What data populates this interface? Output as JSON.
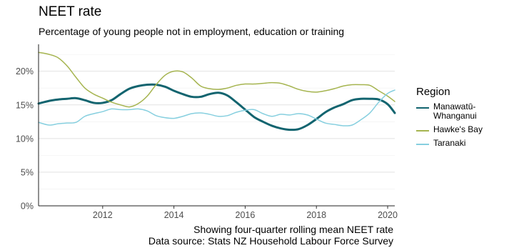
{
  "title": "NEET rate",
  "subtitle": "Percentage of young people not in employment, education or training",
  "caption_line1": "Showing four-quarter rolling mean NEET rate",
  "caption_line2": "Data source: Stats NZ Household Labour Force Survey",
  "legend": {
    "title": "Region",
    "items": [
      {
        "label": "Manawatū-Whanganui",
        "color": "#12646f"
      },
      {
        "label": "Hawke's Bay",
        "color": "#a5b44f"
      },
      {
        "label": "Taranaki",
        "color": "#86cfdf"
      }
    ]
  },
  "chart_data": {
    "type": "line",
    "xlim": [
      2010.2,
      2020.2
    ],
    "ylim": [
      0,
      24
    ],
    "x_ticks": [
      2012,
      2014,
      2016,
      2018,
      2020
    ],
    "x_tick_labels": [
      "2012",
      "2014",
      "2016",
      "2018",
      "2020"
    ],
    "y_ticks": [
      0,
      5,
      10,
      15,
      20
    ],
    "y_tick_labels": [
      "0%",
      "5%",
      "10%",
      "15%",
      "20%"
    ],
    "grid": true,
    "legend_position": "right",
    "series": [
      {
        "name": "Manawatū-Whanganui",
        "color": "#12646f",
        "width": 3,
        "x": [
          2010.2,
          2010.5,
          2010.75,
          2011.0,
          2011.25,
          2011.5,
          2011.75,
          2012.0,
          2012.25,
          2012.5,
          2012.75,
          2013.0,
          2013.25,
          2013.5,
          2013.75,
          2014.0,
          2014.25,
          2014.5,
          2014.75,
          2015.0,
          2015.25,
          2015.5,
          2015.75,
          2016.0,
          2016.25,
          2016.5,
          2016.75,
          2017.0,
          2017.25,
          2017.5,
          2017.75,
          2018.0,
          2018.25,
          2018.5,
          2018.75,
          2019.0,
          2019.25,
          2019.5,
          2019.75,
          2020.0,
          2020.2
        ],
        "y": [
          15.2,
          15.6,
          15.8,
          15.9,
          16.0,
          15.7,
          15.3,
          15.3,
          15.7,
          16.6,
          17.4,
          17.8,
          18.0,
          18.0,
          17.7,
          17.1,
          16.6,
          16.2,
          16.2,
          16.6,
          16.8,
          16.4,
          15.4,
          14.3,
          13.2,
          12.5,
          11.9,
          11.5,
          11.3,
          11.4,
          12.0,
          12.9,
          13.9,
          14.6,
          15.1,
          15.7,
          15.9,
          15.9,
          15.8,
          15.1,
          13.8
        ]
      },
      {
        "name": "Hawke's Bay",
        "color": "#a5b44f",
        "width": 1.5,
        "x": [
          2010.2,
          2010.5,
          2010.75,
          2011.0,
          2011.25,
          2011.5,
          2011.75,
          2012.0,
          2012.25,
          2012.5,
          2012.75,
          2013.0,
          2013.25,
          2013.5,
          2013.75,
          2014.0,
          2014.25,
          2014.5,
          2014.75,
          2015.0,
          2015.25,
          2015.5,
          2015.75,
          2016.0,
          2016.25,
          2016.5,
          2016.75,
          2017.0,
          2017.25,
          2017.5,
          2017.75,
          2018.0,
          2018.25,
          2018.5,
          2018.75,
          2019.0,
          2019.25,
          2019.5,
          2019.75,
          2020.0,
          2020.2
        ],
        "y": [
          22.8,
          22.5,
          22.0,
          20.8,
          19.1,
          17.5,
          16.6,
          16.0,
          15.4,
          15.0,
          14.7,
          15.2,
          16.3,
          18.0,
          19.4,
          20.0,
          19.9,
          19.0,
          17.8,
          17.4,
          17.3,
          17.5,
          17.9,
          18.1,
          18.1,
          18.2,
          18.3,
          18.2,
          17.8,
          17.3,
          17.0,
          16.9,
          17.1,
          17.4,
          17.8,
          18.0,
          18.0,
          17.9,
          17.1,
          16.3,
          15.5
        ]
      },
      {
        "name": "Taranaki",
        "color": "#86cfdf",
        "width": 1.5,
        "x": [
          2010.2,
          2010.5,
          2010.75,
          2011.0,
          2011.25,
          2011.5,
          2011.75,
          2012.0,
          2012.25,
          2012.5,
          2012.75,
          2013.0,
          2013.25,
          2013.5,
          2013.75,
          2014.0,
          2014.25,
          2014.5,
          2014.75,
          2015.0,
          2015.25,
          2015.5,
          2015.75,
          2016.0,
          2016.25,
          2016.5,
          2016.75,
          2017.0,
          2017.25,
          2017.5,
          2017.75,
          2018.0,
          2018.25,
          2018.5,
          2018.75,
          2019.0,
          2019.25,
          2019.5,
          2019.75,
          2020.0,
          2020.2
        ],
        "y": [
          12.4,
          12.0,
          12.2,
          12.3,
          12.4,
          13.3,
          13.7,
          14.0,
          14.4,
          14.3,
          14.3,
          14.4,
          14.1,
          13.4,
          13.1,
          13.0,
          13.3,
          13.7,
          13.8,
          13.6,
          13.3,
          13.4,
          13.9,
          14.2,
          14.3,
          13.7,
          13.3,
          13.6,
          13.5,
          13.7,
          13.5,
          12.9,
          12.3,
          12.1,
          11.9,
          12.0,
          12.8,
          13.8,
          15.4,
          16.7,
          17.2
        ]
      }
    ]
  }
}
